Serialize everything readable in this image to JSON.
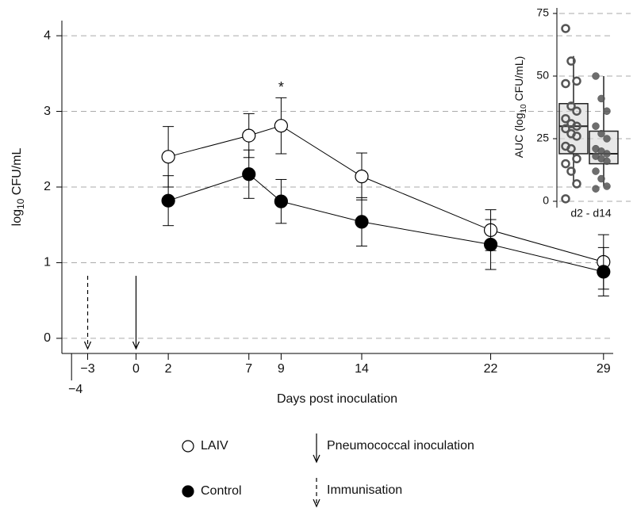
{
  "chart_data": [
    {
      "type": "line",
      "ylabel_parts": [
        "log",
        "10",
        " CFU/mL"
      ],
      "xlabel": "Days post inoculation",
      "x": [
        2,
        7,
        9,
        14,
        22,
        29
      ],
      "xlim": [
        -4.6,
        29.6
      ],
      "xticks": [
        {
          "value": -4,
          "label": "−4"
        },
        {
          "value": -3,
          "label": "−3"
        },
        0,
        2,
        7,
        9,
        14,
        22,
        29
      ],
      "ylim": [
        -0.2,
        4.2
      ],
      "yticks": [
        0,
        1,
        2,
        3,
        4
      ],
      "grid": true,
      "series": [
        {
          "name": "LAIV",
          "color": "#ffffff",
          "values": [
            2.4,
            2.68,
            2.81,
            2.14,
            1.43,
            1.01
          ],
          "errors": [
            0.4,
            0.29,
            0.37,
            0.31,
            0.27,
            0.36
          ]
        },
        {
          "name": "Control",
          "color": "#000000",
          "values": [
            1.82,
            2.17,
            1.81,
            1.54,
            1.24,
            0.88
          ],
          "errors": [
            0.33,
            0.32,
            0.29,
            0.32,
            0.33,
            0.32
          ]
        }
      ],
      "annotations": [
        {
          "text": "*",
          "x": 9
        }
      ],
      "events": [
        {
          "x": 0,
          "label": "Pneumococcal inoculation",
          "style": "solid"
        },
        {
          "x": -3,
          "label": "Immunisation",
          "style": "dashed"
        }
      ]
    },
    {
      "type": "box",
      "ylabel_parts": [
        "AUC (log",
        "10",
        " CFU/mL)"
      ],
      "categories": [
        "d2 - d14"
      ],
      "ylim": [
        -5,
        78
      ],
      "yticks": [
        0,
        25,
        50,
        75
      ],
      "grid": true,
      "groups": [
        {
          "color": "#555555",
          "filled": false,
          "q1": 19,
          "median": 30,
          "q3": 39,
          "whisker_low": 7,
          "whisker_high": 58,
          "points": [
            69,
            56,
            48,
            47,
            38,
            36,
            33,
            31,
            30,
            29,
            27,
            26,
            22,
            21,
            17,
            15,
            12,
            7,
            1
          ]
        },
        {
          "color": "#555555",
          "filled": true,
          "q1": 15,
          "median": 19,
          "q3": 28,
          "whisker_low": 6,
          "whisker_high": 50,
          "points": [
            50,
            41,
            36,
            30,
            27,
            25,
            21,
            20,
            19,
            18,
            17,
            16,
            12,
            9,
            6,
            5
          ]
        }
      ]
    }
  ]
}
